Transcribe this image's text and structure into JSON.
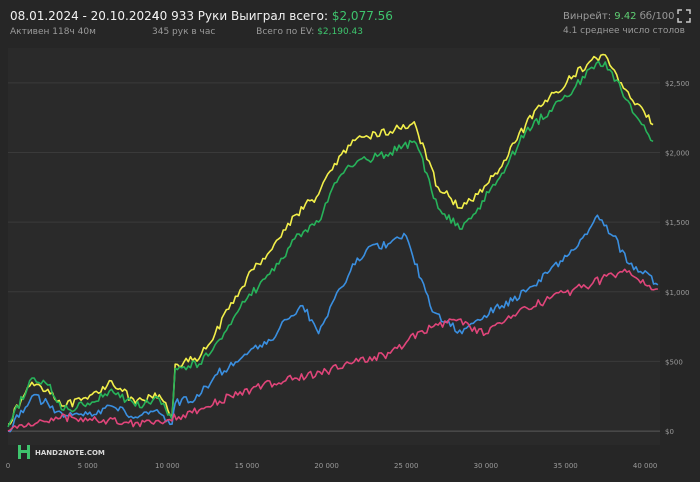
{
  "header": {
    "date_range": "08.01.2024 - 20.10.2024",
    "active_time": "Активен 118ч 40м",
    "hands": "40 933 Руки",
    "hands_per_hour": "345 рук в час",
    "won_total_label": "Выиграл всего:",
    "won_total_value": "$2,077.56",
    "ev_total_label": "Всего по EV:",
    "ev_total_value": "$2,190.43",
    "winrate_label": "Винрейт:",
    "winrate_value": "9.42",
    "winrate_unit": "бб/100",
    "avg_tables": "4.1 среднее число столов"
  },
  "logo": {
    "text": "HAND2NOTE.COM"
  },
  "colors": {
    "background": "#262626",
    "plot_background": "#2a2a2a",
    "grid": "#444444",
    "yellow": "#f2ef4a",
    "green": "#27b35a",
    "blue": "#3a8fe0",
    "pink": "#e0457a",
    "accent_green": "#3ec46d"
  },
  "chart_data": {
    "type": "line",
    "x_ticks": [
      0,
      5000,
      10000,
      15000,
      20000,
      25000,
      30000,
      35000,
      40000
    ],
    "x_tick_labels": [
      "0",
      "5 000",
      "10 000",
      "15 000",
      "20 000",
      "25 000",
      "30 000",
      "35 000",
      "40 000"
    ],
    "y_ticks": [
      0,
      500,
      1000,
      1500,
      2000,
      2500
    ],
    "y_tick_labels": [
      "$0",
      "$500",
      "$1,000",
      "$1,500",
      "$2,000",
      "$2,500"
    ],
    "xlim": [
      0,
      40933
    ],
    "ylim": [
      -100,
      2750
    ],
    "series": [
      {
        "color": "#f2ef4a",
        "x": [
          0,
          1500,
          2500,
          3500,
          5000,
          6500,
          8000,
          9500,
          10300,
          10500,
          12000,
          13000,
          15000,
          17000,
          18000,
          19500,
          20500,
          21500,
          22500,
          24000,
          25500,
          26300,
          27000,
          28500,
          29500,
          31000,
          32500,
          34000,
          35500,
          36500,
          37500,
          38500,
          39500,
          40500
        ],
        "y": [
          50,
          350,
          300,
          180,
          230,
          360,
          200,
          260,
          110,
          480,
          520,
          700,
          1100,
          1380,
          1550,
          1700,
          1920,
          2050,
          2120,
          2150,
          2220,
          1950,
          1750,
          1600,
          1700,
          1900,
          2200,
          2400,
          2550,
          2650,
          2700,
          2500,
          2350,
          2200
        ]
      },
      {
        "color": "#27b35a",
        "x": [
          0,
          1500,
          2500,
          3500,
          5000,
          6500,
          8000,
          9500,
          10300,
          10500,
          12000,
          13000,
          15000,
          17000,
          18000,
          19500,
          20500,
          21500,
          22500,
          24000,
          25500,
          26300,
          27000,
          28500,
          29500,
          31000,
          32500,
          34000,
          35500,
          36500,
          37500,
          38500,
          39500,
          40500
        ],
        "y": [
          30,
          380,
          330,
          150,
          200,
          300,
          180,
          230,
          80,
          450,
          480,
          620,
          950,
          1200,
          1380,
          1500,
          1780,
          1900,
          1950,
          2000,
          2080,
          1850,
          1600,
          1450,
          1600,
          1850,
          2150,
          2300,
          2450,
          2600,
          2650,
          2450,
          2250,
          2080
        ]
      },
      {
        "color": "#3a8fe0",
        "x": [
          0,
          1500,
          2500,
          3500,
          5000,
          6500,
          8000,
          9500,
          10300,
          10500,
          12000,
          13000,
          15000,
          16500,
          17500,
          18500,
          19500,
          20500,
          21500,
          22500,
          24000,
          25000,
          26500,
          27500,
          28500,
          29500,
          31000,
          32500,
          34000,
          35500,
          36500,
          37000,
          38000,
          39000,
          40000,
          40800
        ],
        "y": [
          0,
          250,
          200,
          100,
          120,
          180,
          100,
          130,
          50,
          200,
          250,
          400,
          550,
          650,
          800,
          900,
          700,
          950,
          1150,
          1300,
          1350,
          1400,
          900,
          780,
          700,
          800,
          900,
          1000,
          1150,
          1300,
          1450,
          1550,
          1400,
          1200,
          1150,
          1050
        ]
      },
      {
        "color": "#e0457a",
        "x": [
          0,
          2000,
          4000,
          6000,
          8000,
          10000,
          12000,
          14000,
          16000,
          18000,
          20000,
          22000,
          24000,
          26000,
          28000,
          30000,
          32000,
          34000,
          36000,
          38000,
          39000,
          40000,
          40800
        ],
        "y": [
          0,
          80,
          100,
          80,
          60,
          80,
          150,
          250,
          330,
          380,
          430,
          500,
          560,
          720,
          800,
          700,
          850,
          950,
          1030,
          1120,
          1150,
          1050,
          1020
        ]
      }
    ]
  }
}
